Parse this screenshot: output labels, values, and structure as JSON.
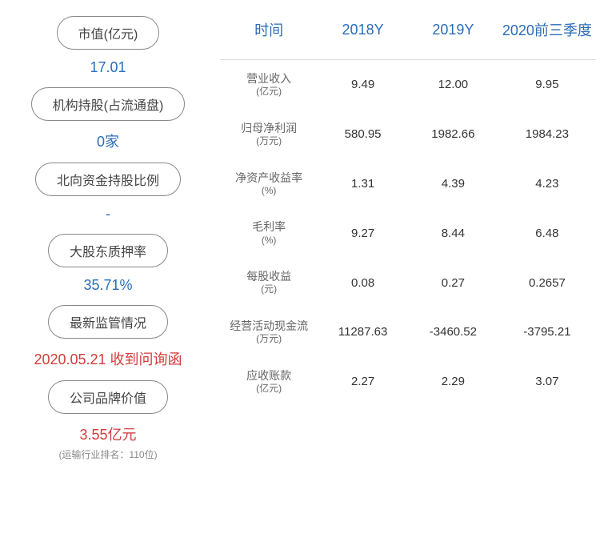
{
  "colors": {
    "blue": "#2a6eb8",
    "red": "#d43b3b",
    "gray_text": "#444444",
    "light_gray": "#888888",
    "table_header": "#2a6eb8",
    "body_text": "#333333"
  },
  "left_stats": [
    {
      "label": "市值(亿元)",
      "value": "17.01",
      "color_key": "blue",
      "sub": ""
    },
    {
      "label": "机构持股(占流通盘)",
      "value": "0家",
      "color_key": "blue",
      "sub": ""
    },
    {
      "label": "北向资金持股比例",
      "value": "-",
      "color_key": "blue",
      "sub": ""
    },
    {
      "label": "大股东质押率",
      "value": "35.71%",
      "color_key": "blue",
      "sub": ""
    },
    {
      "label": "最新监管情况",
      "value": "2020.05.21 收到问询函",
      "color_key": "red",
      "sub": ""
    },
    {
      "label": "公司品牌价值",
      "value": "3.55亿元",
      "color_key": "red",
      "sub": "(运输行业排名：110位)"
    }
  ],
  "table": {
    "header_color": "#2a6eb8",
    "columns": [
      "时间",
      "2018Y",
      "2019Y",
      "2020前三季度"
    ],
    "column_widths": [
      "26%",
      "24%",
      "24%",
      "26%"
    ],
    "rows": [
      {
        "label": "营业收入",
        "unit": "(亿元)",
        "cells": [
          "9.49",
          "12.00",
          "9.95"
        ]
      },
      {
        "label": "归母净利润",
        "unit": "(万元)",
        "cells": [
          "580.95",
          "1982.66",
          "1984.23"
        ]
      },
      {
        "label": "净资产收益率",
        "unit": "(%)",
        "cells": [
          "1.31",
          "4.39",
          "4.23"
        ]
      },
      {
        "label": "毛利率",
        "unit": "(%)",
        "cells": [
          "9.27",
          "8.44",
          "6.48"
        ]
      },
      {
        "label": "每股收益",
        "unit": "(元)",
        "cells": [
          "0.08",
          "0.27",
          "0.2657"
        ]
      },
      {
        "label": "经营活动现金流",
        "unit": "(万元)",
        "cells": [
          "11287.63",
          "-3460.52",
          "-3795.21"
        ]
      },
      {
        "label": "应收账款",
        "unit": "(亿元)",
        "cells": [
          "2.27",
          "2.29",
          "3.07"
        ]
      }
    ]
  }
}
